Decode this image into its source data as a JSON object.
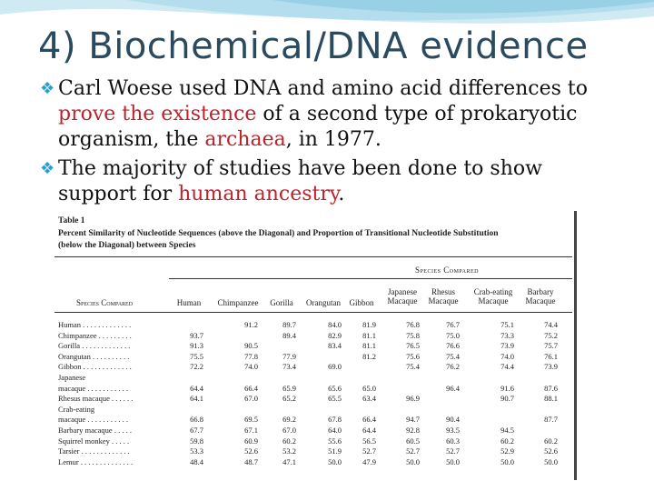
{
  "slide": {
    "title": "4) Biochemical/DNA evidence",
    "bullets": [
      {
        "lines": [
          [
            {
              "t": "Carl Woese used DNA and amino acid differences to",
              "c": "black"
            }
          ],
          [
            {
              "t": "prove the existence",
              "c": "red"
            },
            {
              "t": " of a second type of prokaryotic",
              "c": "black"
            }
          ],
          [
            {
              "t": "organism, the ",
              "c": "black"
            },
            {
              "t": "archaea",
              "c": "red"
            },
            {
              "t": ", in 1977.",
              "c": "black"
            }
          ]
        ]
      },
      {
        "lines": [
          [
            {
              "t": "The majority of studies have been done to show",
              "c": "black"
            }
          ],
          [
            {
              "t": "support for ",
              "c": "black"
            },
            {
              "t": "human ancestry",
              "c": "red"
            },
            {
              "t": ".",
              "c": "black"
            }
          ]
        ]
      }
    ]
  },
  "table": {
    "label": "Table 1",
    "caption_lines": [
      "Percent Similarity of Nucleotide Sequences (above the Diagonal) and Proportion of Transitional Nucleotide Substitution",
      "(below the Diagonal) between Species"
    ],
    "group_header": "Species Compared",
    "row_header": "Species Compared",
    "columns": [
      [
        "Human"
      ],
      [
        "Chimpanzee"
      ],
      [
        "Gorilla"
      ],
      [
        "Orangutan"
      ],
      [
        "Gibbon"
      ],
      [
        "Japanese",
        "Macaque"
      ],
      [
        "Rhesus",
        "Macaque"
      ],
      [
        "Crab-eating",
        "Macaque"
      ],
      [
        "Barbary",
        "Macaque"
      ]
    ],
    "rows": [
      {
        "label": "Human . . . . . . . . . . . . .",
        "cells": [
          "",
          "91.2",
          "89.7",
          "84.0",
          "81.9",
          "76.8",
          "76.7",
          "75.1",
          "74.4"
        ]
      },
      {
        "label": "Chimpanzee . . . . . . . . .",
        "cells": [
          "93.7",
          "",
          "89.4",
          "82.9",
          "81.1",
          "75.8",
          "75.0",
          "73.3",
          "75.2"
        ]
      },
      {
        "label": "Gorilla . . . . . . . . . . . . .",
        "cells": [
          "91.3",
          "90.5",
          "",
          "83.4",
          "81.1",
          "76.5",
          "76.6",
          "73.9",
          "75.7"
        ]
      },
      {
        "label": "Orangutan . . . . . . . . . .",
        "cells": [
          "75.5",
          "77.8",
          "77.9",
          "",
          "81.2",
          "75.6",
          "75.4",
          "74.0",
          "76.1"
        ]
      },
      {
        "label": "Gibbon . . . . . . . . . . . . .",
        "cells": [
          "72.2",
          "74.0",
          "73.4",
          "69.0",
          "",
          "75.4",
          "76.2",
          "74.4",
          "73.9"
        ]
      },
      {
        "label": "Japanese",
        "cells": [
          "",
          "",
          "",
          "",
          "",
          "",
          "",
          "",
          ""
        ]
      },
      {
        "label": "   macaque . . . . . . . . . . .",
        "cells": [
          "64.4",
          "66.4",
          "65.9",
          "65.6",
          "65.0",
          "",
          "96.4",
          "91.6",
          "87.6"
        ]
      },
      {
        "label": "Rhesus macaque . . . . . .",
        "cells": [
          "64.1",
          "67.0",
          "65.2",
          "65.5",
          "63.4",
          "96.9",
          "",
          "90.7",
          "88.1"
        ]
      },
      {
        "label": "Crab-eating",
        "cells": [
          "",
          "",
          "",
          "",
          "",
          "",
          "",
          "",
          ""
        ]
      },
      {
        "label": "   macaque . . . . . . . . . . .",
        "cells": [
          "66.8",
          "69.5",
          "69.2",
          "67.8",
          "66.4",
          "94.7",
          "90.4",
          "",
          "87.7"
        ]
      },
      {
        "label": "Barbary macaque . . . . .",
        "cells": [
          "67.7",
          "67.1",
          "67.0",
          "64.0",
          "64.4",
          "92.8",
          "93.5",
          "94.5",
          ""
        ]
      },
      {
        "label": "Squirrel monkey . . . . .",
        "cells": [
          "59.8",
          "60.9",
          "60.2",
          "55.6",
          "56.5",
          "60.5",
          "60.3",
          "60.2",
          "60.2"
        ]
      },
      {
        "label": "Tarsier . . . . . . . . . . . . .",
        "cells": [
          "53.3",
          "52.6",
          "53.2",
          "51.9",
          "52.7",
          "52.7",
          "52.7",
          "52.9",
          "52.6"
        ]
      },
      {
        "label": "Lemur . . . . . . . . . . . . . .",
        "cells": [
          "48.4",
          "48.7",
          "47.1",
          "50.0",
          "47.9",
          "50.0",
          "50.0",
          "50.0",
          "50.0"
        ]
      }
    ]
  },
  "colors": {
    "title": "#2a4a60",
    "accent": "#2aa0c8",
    "emphasis": "#c0202a"
  }
}
